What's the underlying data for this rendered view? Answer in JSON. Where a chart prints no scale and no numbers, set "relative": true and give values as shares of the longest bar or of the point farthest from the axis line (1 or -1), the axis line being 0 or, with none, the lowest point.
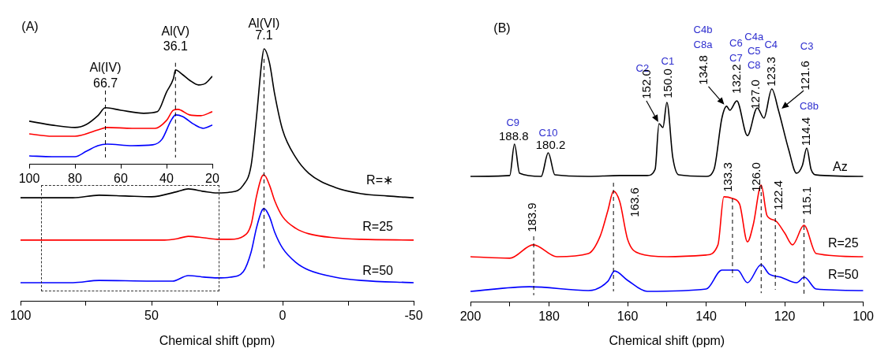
{
  "chart_data": [
    {
      "type": "line",
      "title": "(A)",
      "xlabel": "Chemical shift (ppm)",
      "relative": true,
      "marker": "none",
      "xlim": [
        100,
        -50
      ],
      "xticks": [
        100,
        {
          "value": 75,
          "label": null
        },
        50,
        {
          "value": 25,
          "label": null
        },
        0,
        {
          "value": -25,
          "label": null
        },
        -50
      ],
      "series": [
        {
          "name": "R=∗",
          "color": "#000000",
          "x": [
            100,
            90,
            80,
            70,
            60,
            50,
            40,
            36,
            30,
            25,
            20,
            15,
            12,
            10,
            8,
            7.1,
            5,
            3,
            0,
            -5,
            -10,
            -20,
            -30,
            -40,
            -50
          ],
          "values": [
            0.409,
            0.409,
            0.409,
            0.419,
            0.416,
            0.413,
            0.434,
            0.444,
            0.434,
            0.428,
            0.431,
            0.459,
            0.538,
            0.725,
            0.944,
            1,
            0.944,
            0.819,
            0.678,
            0.569,
            0.506,
            0.45,
            0.425,
            0.416,
            0.409
          ]
        },
        {
          "name": "R=25",
          "color": "#ff0000",
          "x": [
            100,
            80,
            60,
            45,
            40,
            36,
            30,
            25,
            20,
            15,
            12,
            10,
            8,
            7.1,
            5,
            3,
            0,
            -5,
            -10,
            -20,
            -30,
            -50
          ],
          "values": [
            0.241,
            0.241,
            0.241,
            0.241,
            0.247,
            0.256,
            0.25,
            0.244,
            0.244,
            0.256,
            0.303,
            0.413,
            0.491,
            0.5,
            0.459,
            0.397,
            0.334,
            0.288,
            0.266,
            0.25,
            0.244,
            0.241
          ]
        },
        {
          "name": "R=50",
          "color": "#0000ff",
          "x": [
            100,
            80,
            70,
            50,
            42,
            36,
            30,
            25,
            20,
            15,
            12,
            10,
            8,
            7.1,
            5,
            3,
            0,
            -5,
            -10,
            -20,
            -30,
            -50
          ],
          "values": [
            0.072,
            0.072,
            0.081,
            0.078,
            0.078,
            0.1,
            0.094,
            0.091,
            0.094,
            0.116,
            0.194,
            0.288,
            0.356,
            0.366,
            0.334,
            0.272,
            0.209,
            0.153,
            0.122,
            0.094,
            0.081,
            0.072
          ]
        }
      ],
      "ref_lines": [
        {
          "axis": "x",
          "value": 7.1,
          "label": "7.1",
          "line_style": "dashed"
        }
      ],
      "annotations": [
        {
          "text": "Al(VI)",
          "x": 7.1,
          "y": 1
        }
      ]
    },
    {
      "type": "line",
      "relative": true,
      "marker": "none",
      "xlim": [
        100,
        20
      ],
      "xticks": [
        100,
        80,
        60,
        40,
        20
      ],
      "series": [
        {
          "color": "#000000",
          "x": [
            100,
            90,
            80,
            75,
            70,
            66.7,
            60,
            50,
            44,
            40,
            37,
            36.1,
            33,
            30,
            26,
            23,
            20
          ],
          "values": [
            0.454,
            0.412,
            0.387,
            0.42,
            0.513,
            0.597,
            0.571,
            0.538,
            0.555,
            0.765,
            0.908,
            1,
            0.95,
            0.891,
            0.84,
            0.857,
            0.933
          ]
        },
        {
          "color": "#ff0000",
          "x": [
            100,
            90,
            80,
            70,
            66,
            55,
            45,
            40,
            37,
            35,
            30,
            25,
            20
          ],
          "values": [
            0.319,
            0.294,
            0.294,
            0.361,
            0.387,
            0.378,
            0.378,
            0.462,
            0.571,
            0.58,
            0.521,
            0.513,
            0.555
          ]
        },
        {
          "color": "#0000ff",
          "x": [
            100,
            90,
            80,
            75,
            70,
            66,
            55,
            46,
            42,
            38,
            36,
            33,
            28,
            24,
            20
          ],
          "values": [
            0.084,
            0.076,
            0.076,
            0.134,
            0.193,
            0.21,
            0.193,
            0.202,
            0.261,
            0.462,
            0.521,
            0.504,
            0.42,
            0.378,
            0.412
          ]
        }
      ],
      "ref_lines": [
        {
          "axis": "x",
          "value": 66.7,
          "label": "66.7",
          "line_style": "dashed"
        },
        {
          "axis": "x",
          "value": 36.1,
          "label": "36.1",
          "line_style": "dashed"
        }
      ],
      "annotations": [
        {
          "text": "Al(IV)",
          "x": 66.7,
          "y": 0.597
        },
        {
          "text": "Al(V)",
          "x": 36.1,
          "y": 1
        }
      ]
    },
    {
      "type": "line",
      "title": "(B)",
      "xlabel": "Chemical shift (ppm)",
      "relative": true,
      "marker": "none",
      "xlim": [
        200,
        100
      ],
      "xticks": [
        200,
        {
          "value": 190,
          "label": null
        },
        180,
        {
          "value": 170,
          "label": null
        },
        160,
        {
          "value": 150,
          "label": null
        },
        140,
        {
          "value": 130,
          "label": null
        },
        120,
        {
          "value": 110,
          "label": null
        },
        100
      ],
      "series": [
        {
          "name": "Az",
          "color": "#000000",
          "x": [
            200,
            190,
            188.8,
            187.5,
            182,
            180.2,
            178.5,
            170,
            162,
            155,
            153,
            152,
            151,
            150,
            148.5,
            147,
            140,
            138,
            136,
            134.8,
            134,
            132.2,
            129.5,
            127,
            125.3,
            123.3,
            121.6,
            119,
            117,
            115.5,
            114.4,
            113.3,
            112,
            100
          ],
          "values": [
            0.589,
            0.593,
            0.741,
            0.604,
            0.589,
            0.7,
            0.596,
            0.589,
            0.593,
            0.593,
            0.622,
            0.837,
            0.819,
            0.937,
            0.678,
            0.596,
            0.589,
            0.622,
            0.863,
            0.919,
            0.9,
            0.944,
            0.781,
            0.911,
            0.863,
            1,
            0.9,
            0.715,
            0.604,
            0.641,
            0.722,
            0.622,
            0.596,
            0.589
          ]
        },
        {
          "name": "R=25",
          "color": "#ff0000",
          "x": [
            200,
            190,
            184,
            178,
            170,
            167,
            165,
            163.6,
            162,
            160,
            157,
            150,
            140,
            137,
            135.5,
            133.3,
            131.5,
            129.5,
            128,
            126,
            124.5,
            122.4,
            120,
            118,
            115.1,
            112,
            100
          ],
          "values": [
            0.211,
            0.204,
            0.267,
            0.211,
            0.226,
            0.307,
            0.43,
            0.519,
            0.47,
            0.293,
            0.226,
            0.211,
            0.219,
            0.267,
            0.493,
            0.485,
            0.459,
            0.281,
            0.363,
            0.548,
            0.404,
            0.381,
            0.322,
            0.267,
            0.359,
            0.226,
            0.211
          ]
        },
        {
          "name": "R=50",
          "color": "#0000ff",
          "x": [
            200,
            185,
            170,
            165,
            163.3,
            160,
            155,
            140,
            136,
            132,
            129.5,
            126,
            124,
            121,
            117,
            115,
            112,
            100
          ],
          "values": [
            0.048,
            0.07,
            0.052,
            0.096,
            0.144,
            0.1,
            0.048,
            0.059,
            0.148,
            0.148,
            0.089,
            0.174,
            0.13,
            0.115,
            0.089,
            0.115,
            0.059,
            0.052
          ]
        }
      ],
      "ref_lines": [
        {
          "axis": "x",
          "value": 183.9,
          "label": "183.9",
          "line_style": "dashed"
        },
        {
          "axis": "x",
          "value": 163.6,
          "label": "163.6",
          "line_style": "dashed"
        },
        {
          "axis": "x",
          "value": 133.3,
          "label": "133.3",
          "line_style": "dashed"
        },
        {
          "axis": "x",
          "value": 126.0,
          "label": "126.0",
          "line_style": "dashed"
        },
        {
          "axis": "x",
          "value": 122.4,
          "label": "122.4",
          "line_style": "dashed"
        },
        {
          "axis": "x",
          "value": 115.1,
          "label": "115.1",
          "line_style": "dashed"
        }
      ],
      "annotations": [
        "C9",
        {
          "text": "188.8",
          "x": 188.8,
          "y": 0.741
        },
        "C10",
        {
          "text": "180.2",
          "x": 180.2,
          "y": 0.7
        },
        "C2",
        {
          "text": "152.0",
          "x": 152.0,
          "y": 0.837
        },
        "C1",
        {
          "text": "150.0",
          "x": 150.0,
          "y": 0.937
        },
        "C4b",
        "C8a",
        {
          "text": "134.8",
          "x": 134.8,
          "y": 0.919
        },
        "C6",
        "C7",
        {
          "text": "132.2",
          "x": 132.2,
          "y": 0.944
        },
        "C4a",
        "C5",
        "C8",
        {
          "text": "127.0",
          "x": 127.0,
          "y": 0.911
        },
        "C4",
        {
          "text": "123.3",
          "x": 123.3,
          "y": 1
        },
        "C3",
        {
          "text": "121.6",
          "x": 121.6,
          "y": 0.9
        },
        "C8b",
        {
          "text": "114.4",
          "x": 114.4,
          "y": 0.722
        }
      ]
    }
  ]
}
